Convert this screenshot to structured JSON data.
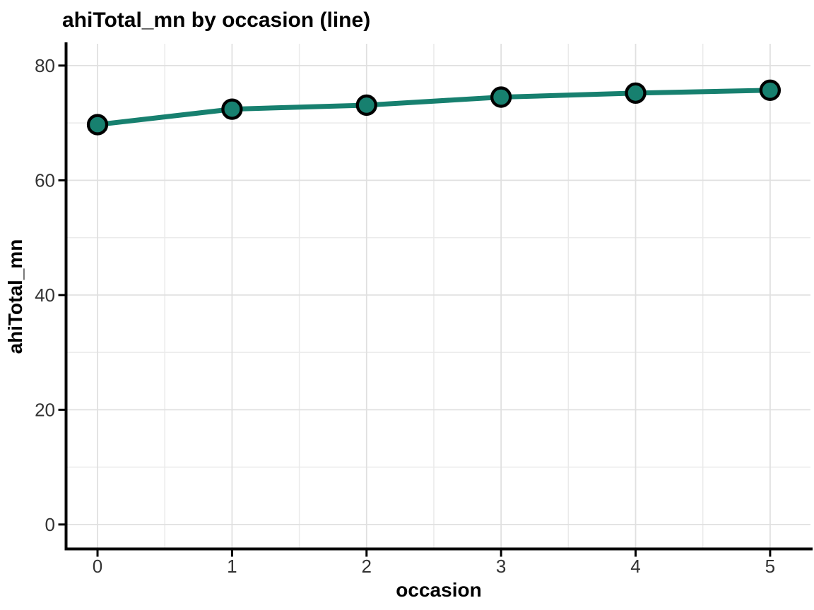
{
  "figure": {
    "background": "#FFFFFF"
  },
  "chart_data": {
    "type": "line",
    "title": "ahiTotal_mn by occasion (line)",
    "xlabel": "occasion",
    "ylabel": "ahiTotal_mn",
    "x": [
      0,
      1,
      2,
      3,
      4,
      5
    ],
    "series": [
      {
        "name": "ahiTotal_mn",
        "values": [
          69.7,
          72.4,
          73.1,
          74.5,
          75.2,
          75.7
        ]
      }
    ],
    "x_ticks": [
      "0",
      "1",
      "2",
      "3",
      "4",
      "5"
    ],
    "x_tick_values": [
      0,
      1,
      2,
      3,
      4,
      5
    ],
    "y_ticks": [
      "0",
      "20",
      "40",
      "60",
      "80"
    ],
    "y_tick_values": [
      0,
      20,
      40,
      60,
      80
    ],
    "x_minor_gridlines": [
      0.5,
      1.5,
      2.5,
      3.5,
      4.5
    ],
    "y_minor_gridlines": [
      10,
      30,
      50,
      70
    ],
    "xlim": [
      -0.226,
      5.3
    ],
    "ylim": [
      -4.2,
      83.8
    ],
    "grid": true,
    "legend": false,
    "colors": {
      "line": "#17806F",
      "marker_fill": "#17806F",
      "marker_outline": "#000000",
      "grid_major": "#E0E0E0",
      "grid_minor": "#EAEAEA",
      "axis_line": "#000000",
      "tick_mark": "#000000",
      "tick_label": "#333333",
      "text": "#000000",
      "background": "#FFFFFF"
    }
  }
}
